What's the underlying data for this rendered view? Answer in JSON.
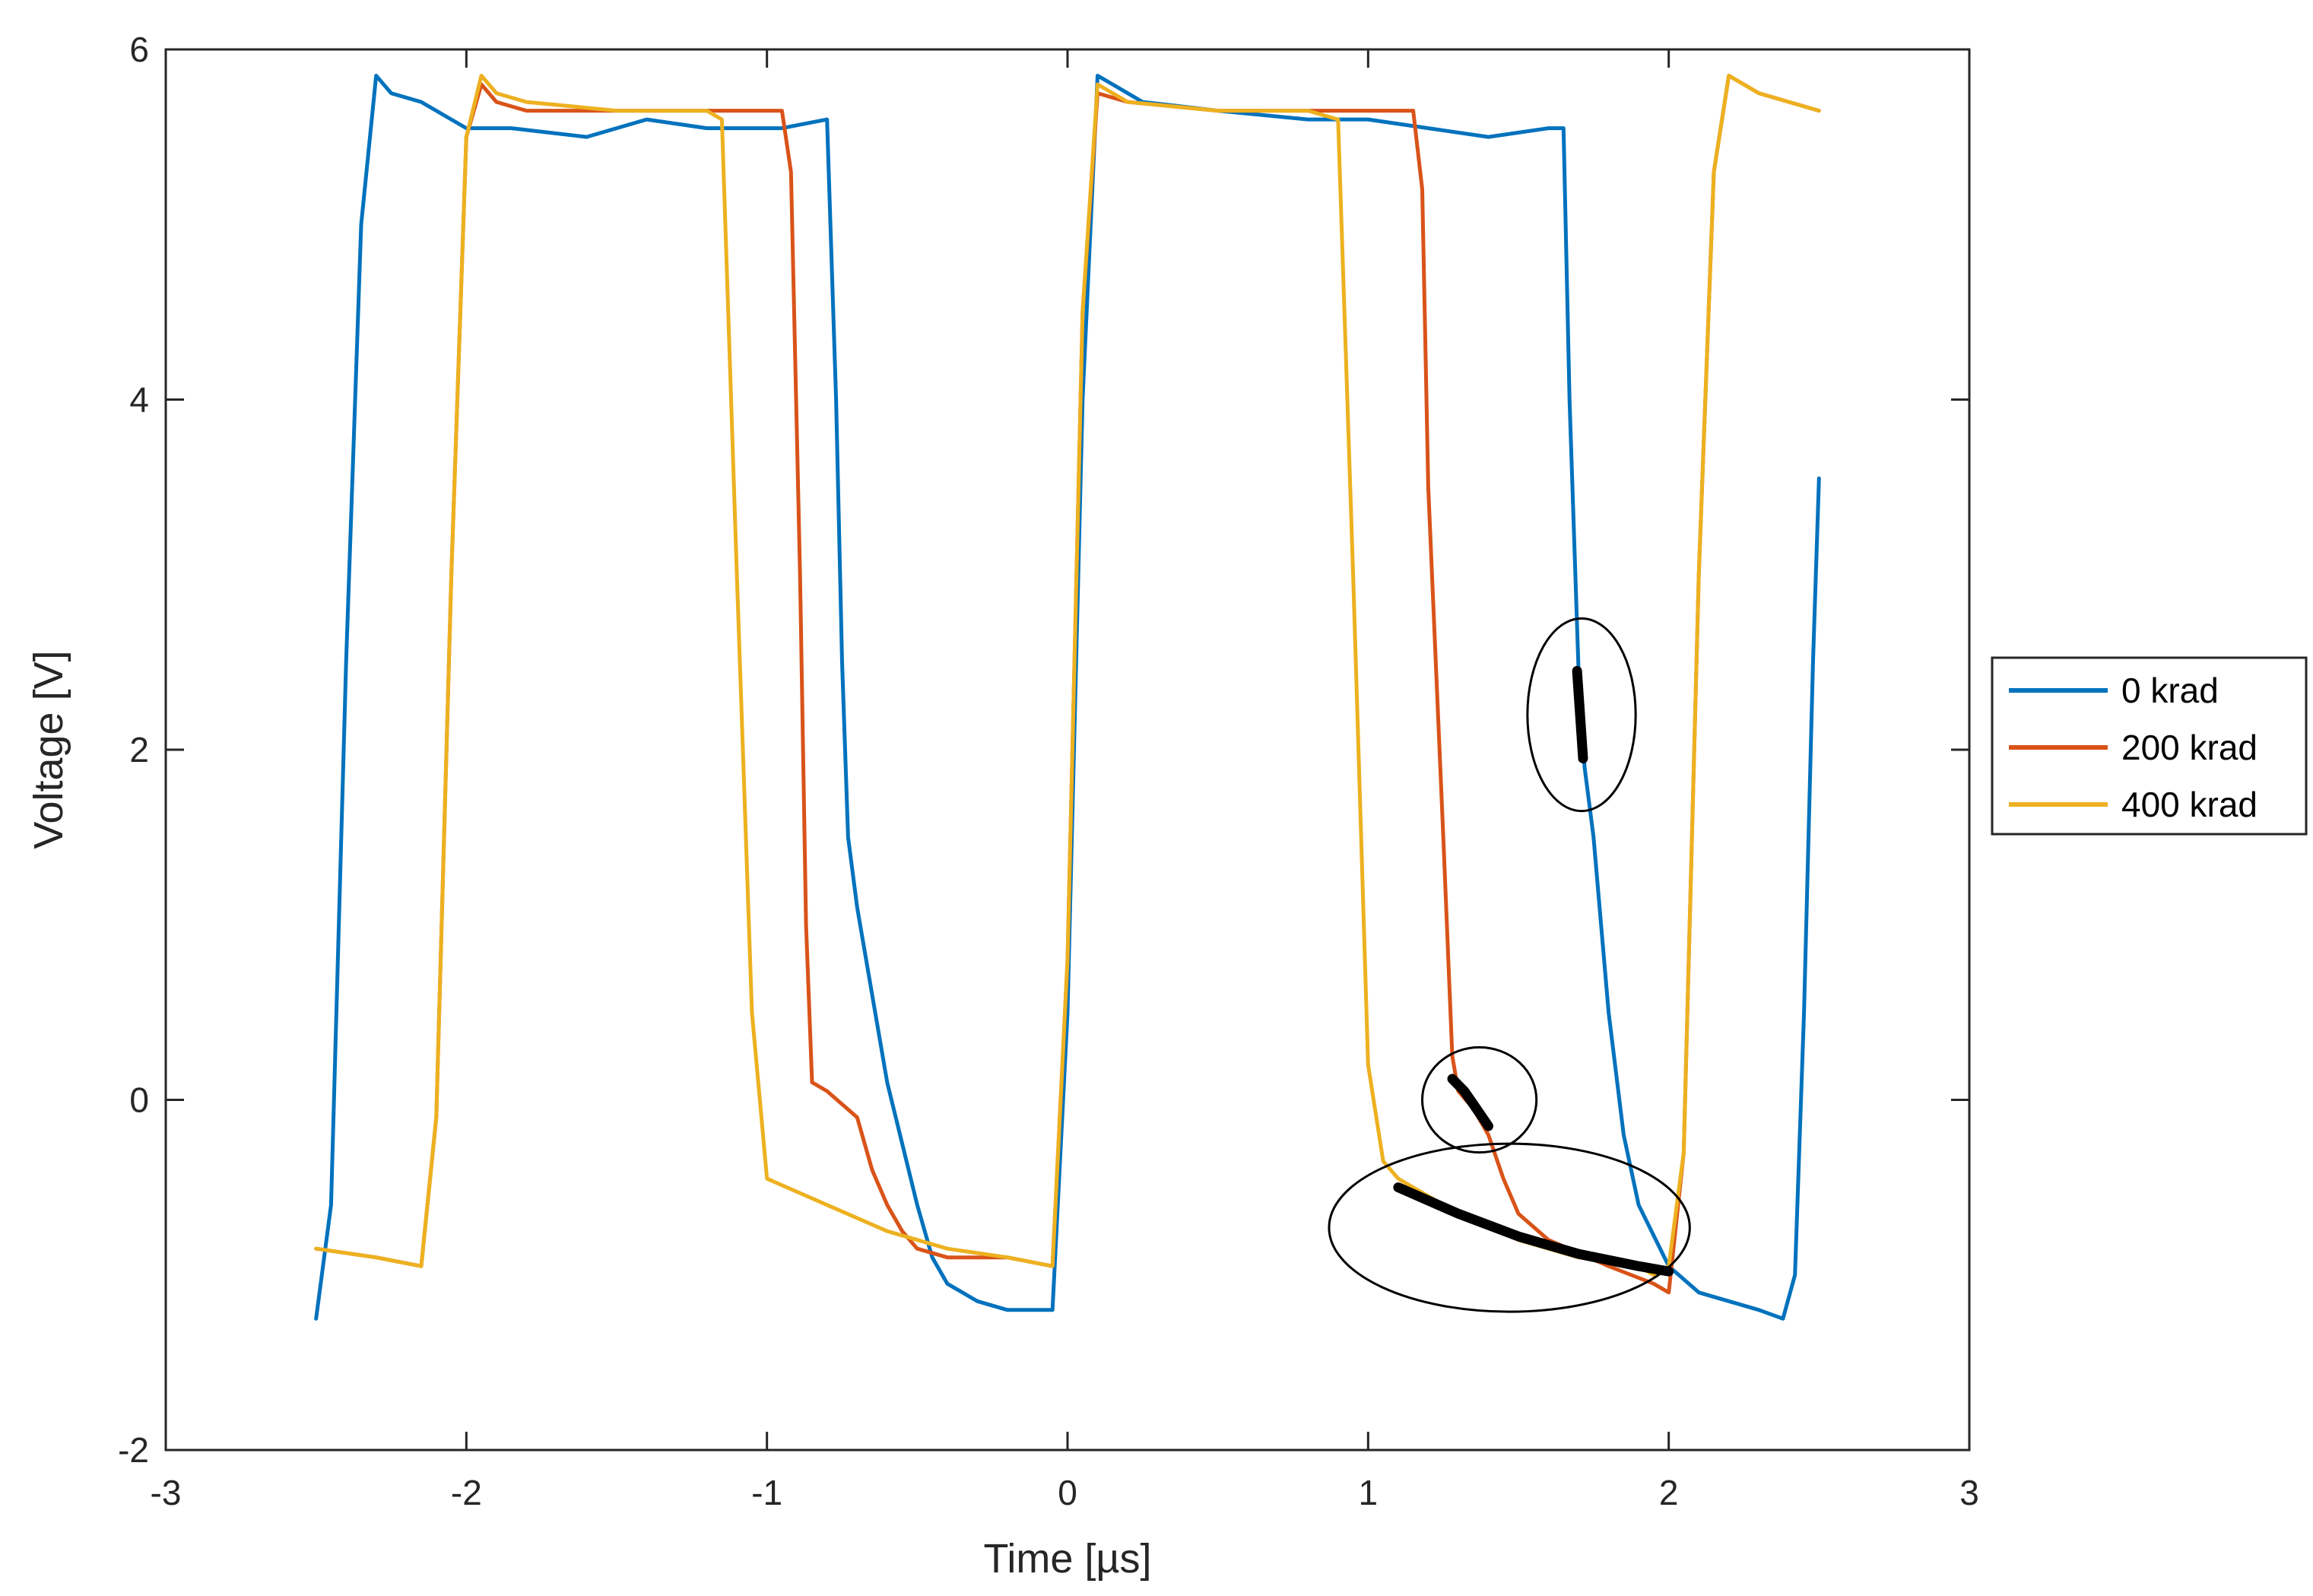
{
  "chart_data": {
    "type": "line",
    "title": "",
    "xlabel": "Time [µs]",
    "ylabel": "Voltage [V]",
    "xlim": [
      -3,
      3
    ],
    "ylim": [
      -2,
      6
    ],
    "xticks": [
      -3,
      -2,
      -1,
      0,
      1,
      2,
      3
    ],
    "xtick_labels": [
      "-3",
      "-2",
      "-1",
      "0",
      "1",
      "2",
      "3"
    ],
    "yticks": [
      -2,
      0,
      2,
      4,
      6
    ],
    "ytick_labels": [
      "-2",
      "0",
      "2",
      "4",
      "6"
    ],
    "grid": false,
    "legend_position": "outside-right",
    "series": [
      {
        "name": "0 krad",
        "color": "#0072BD",
        "x": [
          -2.5,
          -2.45,
          -2.4,
          -2.35,
          -2.3,
          -2.25,
          -2.15,
          -2.0,
          -1.85,
          -1.6,
          -1.4,
          -1.2,
          -0.95,
          -0.8,
          -0.77,
          -0.75,
          -0.73,
          -0.7,
          -0.6,
          -0.5,
          -0.45,
          -0.4,
          -0.3,
          -0.2,
          -0.1,
          -0.05,
          0.0,
          0.05,
          0.1,
          0.15,
          0.25,
          0.5,
          0.8,
          1.0,
          1.2,
          1.4,
          1.6,
          1.65,
          1.67,
          1.7,
          1.72,
          1.75,
          1.8,
          1.85,
          1.9,
          2.0,
          2.1,
          2.2,
          2.3,
          2.38,
          2.42,
          2.45,
          2.48,
          2.5
        ],
        "y": [
          -1.25,
          -0.6,
          2.5,
          5.0,
          5.85,
          5.75,
          5.7,
          5.55,
          5.55,
          5.5,
          5.6,
          5.55,
          5.55,
          5.6,
          4.0,
          2.5,
          1.5,
          1.1,
          0.1,
          -0.6,
          -0.9,
          -1.05,
          -1.15,
          -1.2,
          -1.2,
          -1.2,
          0.5,
          4.0,
          5.85,
          5.8,
          5.7,
          5.65,
          5.6,
          5.6,
          5.55,
          5.5,
          5.55,
          5.55,
          4.0,
          2.45,
          1.9,
          1.5,
          0.5,
          -0.2,
          -0.6,
          -0.95,
          -1.1,
          -1.15,
          -1.2,
          -1.25,
          -1.0,
          0.5,
          2.5,
          3.55
        ]
      },
      {
        "name": "200 krad",
        "color": "#D95319",
        "x": [
          -2.5,
          -2.3,
          -2.15,
          -2.1,
          -2.05,
          -2.0,
          -1.95,
          -1.9,
          -1.8,
          -1.5,
          -1.2,
          -1.0,
          -0.95,
          -0.92,
          -0.89,
          -0.87,
          -0.85,
          -0.8,
          -0.7,
          -0.65,
          -0.6,
          -0.55,
          -0.5,
          -0.4,
          -0.2,
          -0.05,
          0.0,
          0.05,
          0.1,
          0.2,
          0.5,
          0.8,
          1.0,
          1.15,
          1.18,
          1.2,
          1.25,
          1.28,
          1.3,
          1.35,
          1.4,
          1.45,
          1.5,
          1.6,
          1.8,
          1.95,
          2.0,
          2.05,
          2.1,
          2.15,
          2.2,
          2.3,
          2.4,
          2.5
        ],
        "y": [
          -0.85,
          -0.9,
          -0.95,
          -0.1,
          3.0,
          5.5,
          5.8,
          5.7,
          5.65,
          5.65,
          5.65,
          5.65,
          5.65,
          5.3,
          3.0,
          1.0,
          0.1,
          0.05,
          -0.1,
          -0.4,
          -0.6,
          -0.75,
          -0.85,
          -0.9,
          -0.9,
          -0.95,
          0.8,
          4.5,
          5.75,
          5.7,
          5.65,
          5.65,
          5.65,
          5.65,
          5.2,
          3.5,
          1.5,
          0.25,
          0.05,
          -0.05,
          -0.2,
          -0.45,
          -0.65,
          -0.8,
          -0.95,
          -1.05,
          -1.1,
          -0.3,
          3.0,
          5.3,
          5.85,
          5.75,
          5.7,
          5.65
        ]
      },
      {
        "name": "400 krad",
        "color": "#EDB120",
        "x": [
          -2.5,
          -2.3,
          -2.15,
          -2.1,
          -2.05,
          -2.0,
          -1.95,
          -1.9,
          -1.8,
          -1.5,
          -1.2,
          -1.15,
          -1.1,
          -1.05,
          -1.0,
          -0.8,
          -0.6,
          -0.4,
          -0.2,
          -0.05,
          0.0,
          0.05,
          0.1,
          0.2,
          0.5,
          0.8,
          0.9,
          0.95,
          1.0,
          1.05,
          1.1,
          1.3,
          1.5,
          1.7,
          1.9,
          1.95,
          2.0,
          2.05,
          2.1,
          2.15,
          2.2,
          2.3,
          2.4,
          2.5
        ],
        "y": [
          -0.85,
          -0.9,
          -0.95,
          -0.1,
          3.0,
          5.5,
          5.85,
          5.75,
          5.7,
          5.65,
          5.65,
          5.6,
          3.0,
          0.5,
          -0.45,
          -0.6,
          -0.75,
          -0.85,
          -0.9,
          -0.95,
          0.8,
          4.5,
          5.8,
          5.7,
          5.65,
          5.65,
          5.6,
          3.0,
          0.2,
          -0.35,
          -0.45,
          -0.65,
          -0.8,
          -0.9,
          -0.95,
          -1.0,
          -0.95,
          -0.3,
          3.0,
          5.3,
          5.85,
          5.75,
          5.7,
          5.65
        ]
      }
    ],
    "annotations": [
      {
        "type": "highlight",
        "x": [
          1.695,
          1.715
        ],
        "y": [
          2.45,
          1.95
        ]
      },
      {
        "type": "highlight",
        "x": [
          1.28,
          1.32,
          1.36,
          1.4
        ],
        "y": [
          0.12,
          0.05,
          -0.05,
          -0.15
        ]
      },
      {
        "type": "highlight",
        "x": [
          1.1,
          1.3,
          1.5,
          1.7,
          1.9,
          2.0
        ],
        "y": [
          -0.5,
          -0.65,
          -0.78,
          -0.88,
          -0.95,
          -0.98
        ]
      },
      {
        "type": "ellipse",
        "cx": 1.71,
        "cy": 2.2,
        "rx": 0.18,
        "ry": 0.55
      },
      {
        "type": "ellipse",
        "cx": 1.37,
        "cy": 0.0,
        "rx": 0.19,
        "ry": 0.3
      },
      {
        "type": "ellipse",
        "cx": 1.47,
        "cy": -0.73,
        "rx": 0.6,
        "ry": 0.48
      }
    ]
  }
}
